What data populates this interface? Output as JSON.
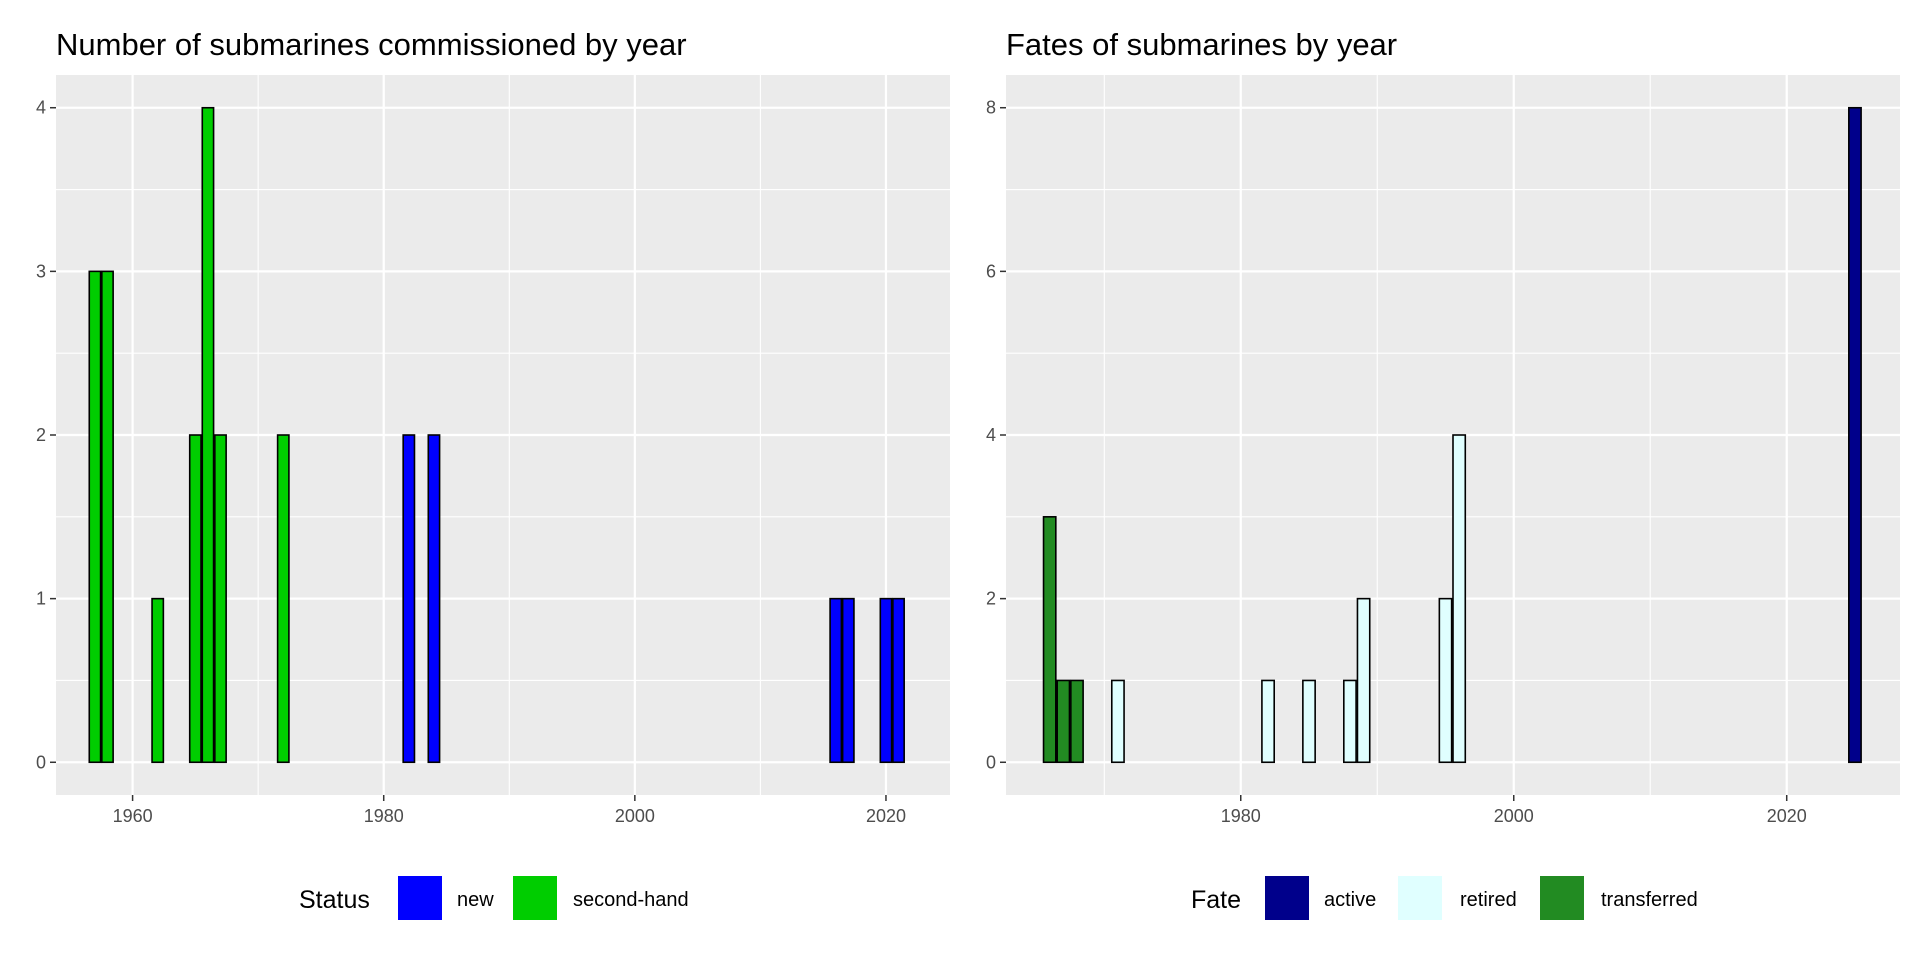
{
  "chart_data": [
    {
      "type": "bar",
      "title": "Number of submarines commissioned by year",
      "xlabel": "",
      "ylabel": "",
      "xlim": [
        1953.9,
        2025.1
      ],
      "ylim": [
        -0.2,
        4.2
      ],
      "x_ticks": [
        1960,
        1980,
        2000,
        2020
      ],
      "y_ticks": [
        0,
        1,
        2,
        3,
        4
      ],
      "grid": true,
      "legend": {
        "title": "Status",
        "placement": "bottom",
        "entries": [
          {
            "label": "new",
            "color": "#0000ff"
          },
          {
            "label": "second-hand",
            "color": "#00cd00"
          }
        ]
      },
      "series": [
        {
          "name": "new",
          "color": "#0000ff",
          "points": [
            [
              1982,
              2
            ],
            [
              1984,
              2
            ],
            [
              2016,
              1
            ],
            [
              2017,
              1
            ],
            [
              2020,
              1
            ],
            [
              2021,
              1
            ]
          ]
        },
        {
          "name": "second-hand",
          "color": "#00cd00",
          "points": [
            [
              1957,
              3
            ],
            [
              1958,
              3
            ],
            [
              1962,
              1
            ],
            [
              1965,
              2
            ],
            [
              1966,
              4
            ],
            [
              1967,
              2
            ],
            [
              1972,
              2
            ]
          ]
        }
      ]
    },
    {
      "type": "bar",
      "title": "Fates of submarines by year",
      "xlabel": "",
      "ylabel": "",
      "xlim": [
        1962.8,
        2028.3
      ],
      "ylim": [
        -0.4,
        8.4
      ],
      "x_ticks": [
        1980,
        2000,
        2020
      ],
      "y_ticks": [
        0,
        2,
        4,
        6,
        8
      ],
      "grid": true,
      "legend": {
        "title": "Fate",
        "placement": "bottom",
        "entries": [
          {
            "label": "active",
            "color": "#00008b"
          },
          {
            "label": "retired",
            "color": "#e0ffff"
          },
          {
            "label": "transferred",
            "color": "#228b22"
          }
        ]
      },
      "series": [
        {
          "name": "active",
          "color": "#00008b",
          "points": [
            [
              2025,
              8
            ]
          ]
        },
        {
          "name": "retired",
          "color": "#e0ffff",
          "points": [
            [
              1971,
              1
            ],
            [
              1982,
              1
            ],
            [
              1985,
              1
            ],
            [
              1988,
              1
            ],
            [
              1989,
              2
            ],
            [
              1995,
              2
            ],
            [
              1996,
              4
            ]
          ]
        },
        {
          "name": "transferred",
          "color": "#228b22",
          "points": [
            [
              1966,
              3
            ],
            [
              1967,
              1
            ],
            [
              1968,
              1
            ]
          ]
        }
      ]
    }
  ],
  "colors": {
    "panel_background": "#ebebeb",
    "grid_line": "#ffffff",
    "bar_outline": "#000000"
  }
}
